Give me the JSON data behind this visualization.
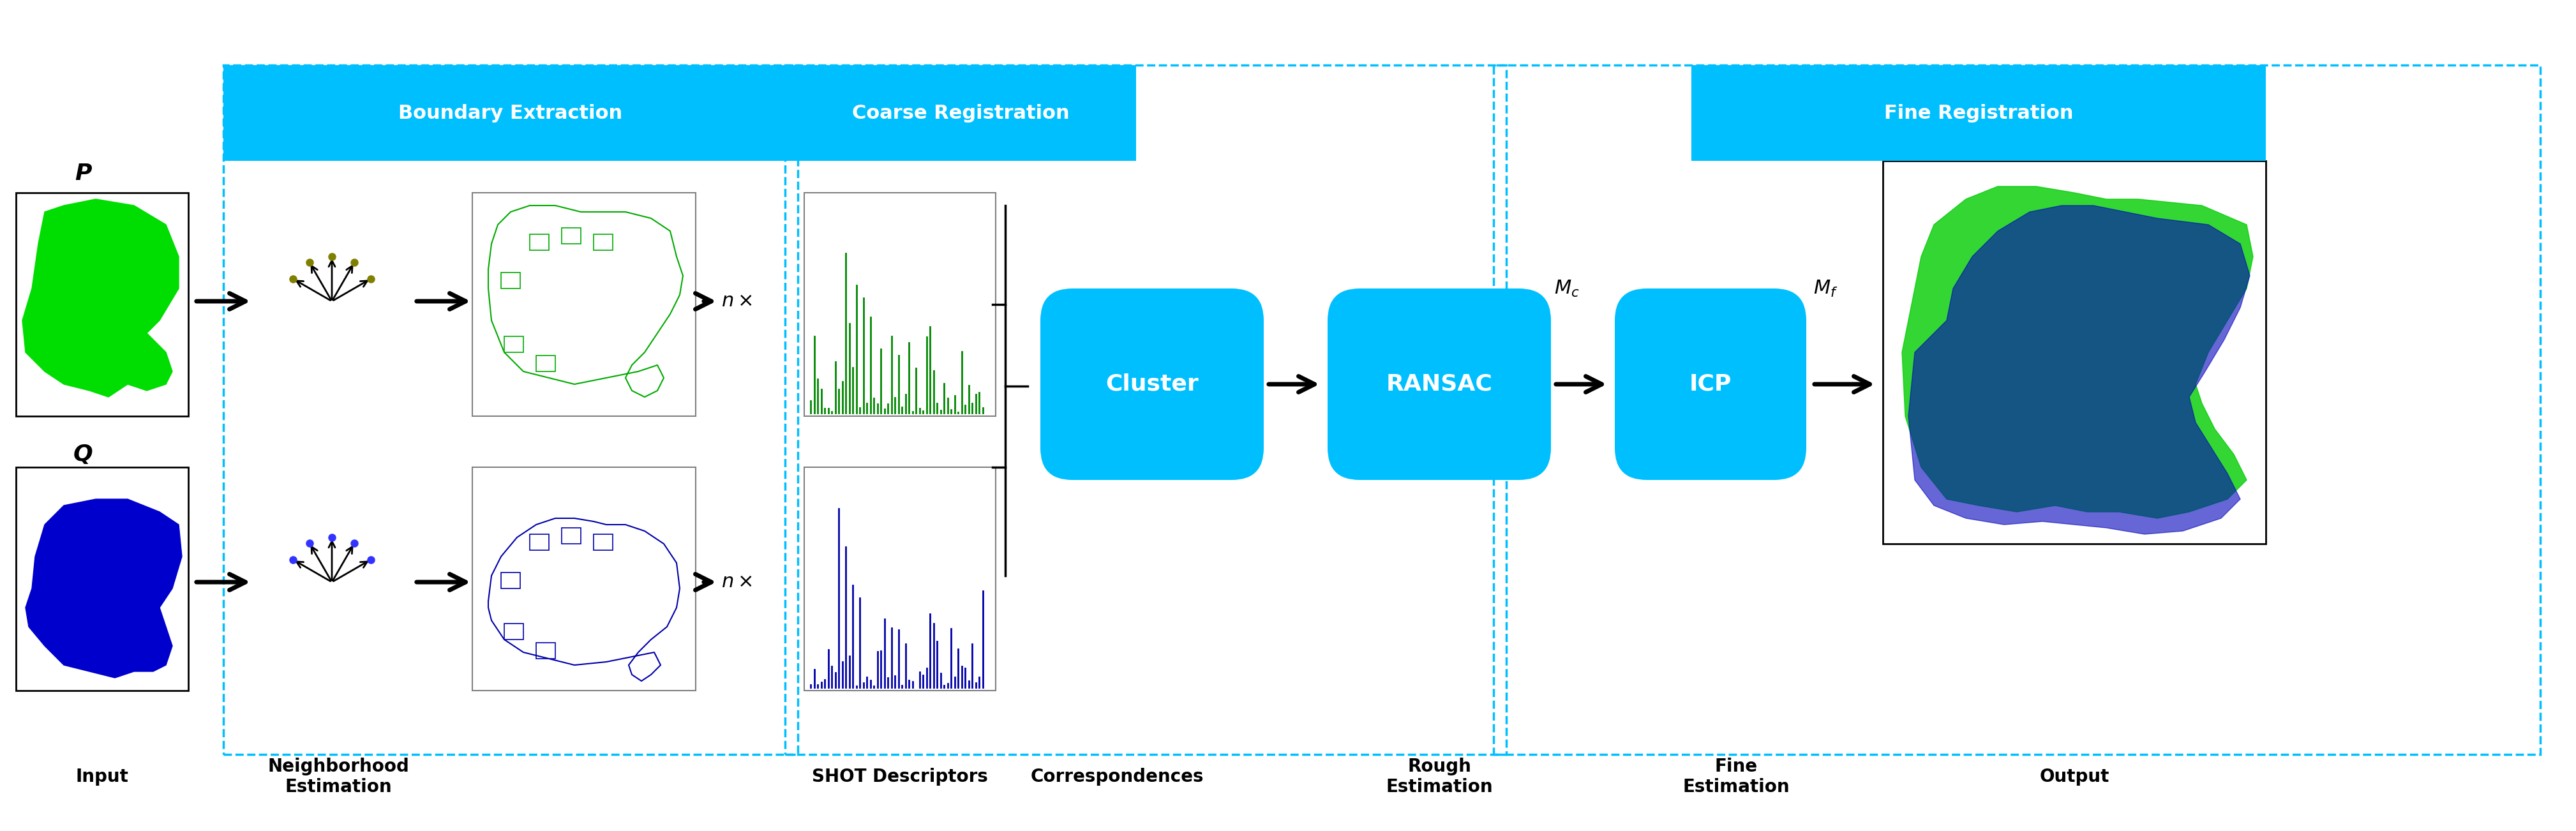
{
  "fig_width": 40.36,
  "fig_height": 13.02,
  "bg_color": "#ffffff",
  "cyan_box_color": "#00BFFF",
  "cyan_border_color": "#00BFFF",
  "dashed_border_color": "#00BFFF",
  "section_labels": {
    "boundary_extraction": "Boundary Extraction",
    "coarse_registration": "Coarse Registration",
    "fine_registration": "Fine Registration"
  },
  "bottom_labels": {
    "input": "Input",
    "neighborhood": "Neighborhood\nEstimation",
    "shot": "SHOT Descriptors",
    "correspondences": "Correspondences",
    "rough": "Rough\nEstimation",
    "fine": "Fine\nEstimation",
    "output": "Output"
  },
  "process_boxes": {
    "cluster": "Cluster",
    "ransac": "RANSAC",
    "icp": "ICP"
  },
  "labels_P": "P",
  "labels_Q": "Q",
  "mc_label": "$M_c$",
  "mf_label": "$M_f$"
}
